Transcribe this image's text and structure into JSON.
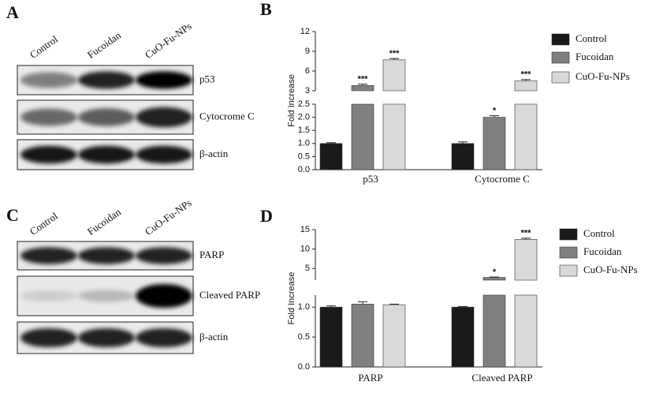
{
  "panels": [
    {
      "letter": "A",
      "lanes": [
        "Control",
        "Fucoidan",
        "CuO-Fu-NPs"
      ],
      "rows": [
        "p53",
        "Cytocrome C",
        "β-actin"
      ]
    },
    {
      "letter": "C",
      "lanes": [
        "Control",
        "Fucoidan",
        "CuO-Fu-NPs"
      ],
      "rows": [
        "PARP",
        "Cleaved  PARP",
        "β-actin"
      ]
    }
  ],
  "chart_data": [
    {
      "letter": "B",
      "type": "bar",
      "ylabel": "Fold Increase",
      "categories": [
        "p53",
        "Cytocrome C"
      ],
      "segments": [
        {
          "ylim": [
            0,
            2.5
          ],
          "yticks": [
            {
              "value": 0,
              "label": "0.0"
            },
            0.5,
            {
              "value": 1,
              "label": "1.0"
            },
            1.5,
            {
              "value": 2,
              "label": "2.0"
            },
            2.5
          ]
        },
        {
          "ylim": [
            3,
            12
          ],
          "yticks": [
            3,
            6,
            9,
            12
          ]
        }
      ],
      "series": [
        {
          "name": "Control",
          "color": "#1a1a1a",
          "values": [
            1.0,
            1.0
          ],
          "errors": [
            0.03,
            0.06
          ],
          "annotations": [
            null,
            null
          ]
        },
        {
          "name": "Fucoidan",
          "color": "#808080",
          "values": [
            3.8,
            2.0
          ],
          "errors": [
            0.2,
            0.06
          ],
          "annotations": [
            "***",
            "*"
          ]
        },
        {
          "name": "CuO-Fu-NPs",
          "color": "#d9d9d9",
          "values": [
            7.7,
            4.5
          ],
          "errors": [
            0.2,
            0.2
          ],
          "annotations": [
            "***",
            "***"
          ]
        }
      ]
    },
    {
      "letter": "D",
      "type": "bar",
      "ylabel": "Fold Increase",
      "categories": [
        "PARP",
        "Cleaved PARP"
      ],
      "segments": [
        {
          "ylim": [
            0,
            1.2
          ],
          "yticks": [
            {
              "value": 0,
              "label": "0.0"
            },
            0.5,
            {
              "value": 1,
              "label": "1.0"
            }
          ]
        },
        {
          "ylim": [
            2,
            15
          ],
          "yticks": [
            5,
            10,
            15
          ]
        }
      ],
      "series": [
        {
          "name": "Control",
          "color": "#1a1a1a",
          "values": [
            1.0,
            1.0
          ],
          "errors": [
            0.02,
            0.01
          ],
          "annotations": [
            null,
            null
          ]
        },
        {
          "name": "Fucoidan",
          "color": "#808080",
          "values": [
            1.05,
            2.7
          ],
          "errors": [
            0.04,
            0.1
          ],
          "annotations": [
            null,
            "*"
          ]
        },
        {
          "name": "CuO-Fu-NPs",
          "color": "#d9d9d9",
          "values": [
            1.04,
            12.5
          ],
          "errors": [
            0.01,
            0.3
          ],
          "annotations": [
            null,
            "***"
          ]
        }
      ]
    }
  ]
}
